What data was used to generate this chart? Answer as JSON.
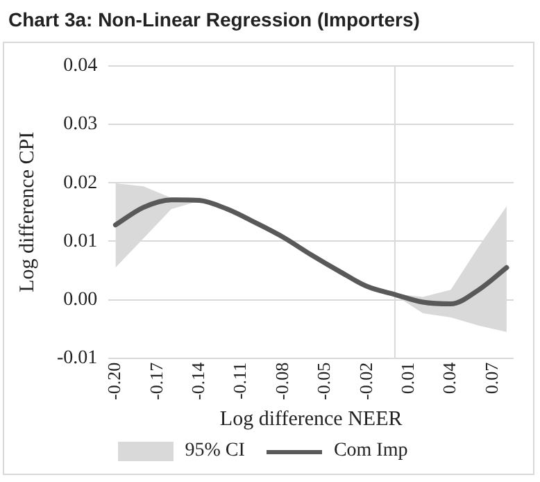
{
  "chart_data": {
    "type": "line",
    "title": "Chart 3a: Non-Linear Regression (Importers)",
    "xlabel": "Log difference NEER",
    "ylabel": "Log difference CPI",
    "x": [
      -0.2,
      -0.18,
      -0.16,
      -0.14,
      -0.12,
      -0.1,
      -0.08,
      -0.06,
      -0.04,
      -0.02,
      0,
      0.02,
      0.04,
      0.06,
      0.08
    ],
    "series": [
      {
        "name": "Com Imp",
        "type": "line",
        "color": "#595959",
        "values": [
          0.0128,
          0.0158,
          0.0171,
          0.017,
          0.0155,
          0.0132,
          0.0107,
          0.0077,
          0.0049,
          0.0023,
          0.0009,
          -0.0004,
          -0.0007,
          0.0017,
          0.0055
        ],
        "lower": [
          0.0055,
          0.0105,
          0.0155,
          0.0169,
          0.0155,
          0.0132,
          0.0107,
          0.0077,
          0.0049,
          0.0023,
          0.0008,
          -0.0023,
          -0.003,
          -0.0044,
          -0.0055
        ],
        "upper": [
          0.0199,
          0.0194,
          0.0174,
          0.0171,
          0.0156,
          0.0133,
          0.0108,
          0.0078,
          0.005,
          0.0024,
          0.001,
          0.0005,
          0.0017,
          0.0091,
          0.016
        ]
      }
    ],
    "annotations": [
      "95% CI"
    ],
    "xlim": [
      -0.205,
      0.085
    ],
    "xticks": [
      {
        "value": -0.2,
        "label": "-0.20"
      },
      -0.17,
      -0.14,
      -0.11,
      -0.08,
      -0.05,
      -0.02,
      0.01,
      0.04,
      0.07
    ],
    "ylim": [
      -0.01,
      0.04
    ],
    "yticks": [
      -0.01,
      {
        "value": 0,
        "label": "0.00"
      },
      0.01,
      0.02,
      0.03,
      0.04
    ],
    "ref_lines": [
      {
        "axis": "x",
        "value": 0,
        "color": "#d9d9d9"
      }
    ],
    "grid": "y",
    "legend": "bottom",
    "marker": "none",
    "line_style": "solid"
  }
}
